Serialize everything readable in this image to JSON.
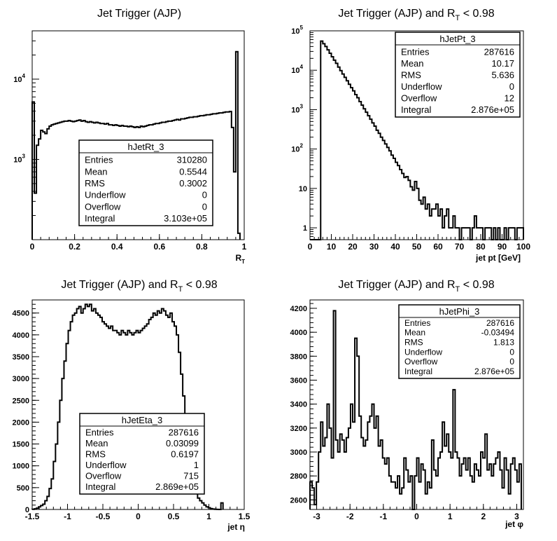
{
  "chart_data": [
    {
      "id": "rt",
      "type": "histogram",
      "title_main": "Jet Trigger (AJP)",
      "title_rt_suffix": "",
      "xlabel_main": "R",
      "xlabel_sub": "T",
      "x_ticks": [
        "0",
        "0.2",
        "0.4",
        "0.6",
        "0.8",
        "1"
      ],
      "y_ticks": [
        "10",
        "10"
      ],
      "y_tick_sups": [
        "3",
        "4"
      ],
      "xlim": [
        0,
        1.0
      ],
      "ylim": [
        100,
        40000
      ],
      "log_y": true,
      "bin_edges_start": 0.0,
      "bin_width": 0.01,
      "values": [
        5200,
        380,
        1500,
        1800,
        2300,
        2200,
        2100,
        2400,
        2600,
        2700,
        2750,
        2800,
        2850,
        2900,
        2950,
        3000,
        3000,
        3050,
        3000,
        2950,
        3000,
        3050,
        3100,
        3000,
        3050,
        2950,
        2900,
        2950,
        2900,
        2850,
        2900,
        2850,
        2800,
        2800,
        2750,
        2800,
        2700,
        2700,
        2650,
        2700,
        2650,
        2600,
        2650,
        2600,
        2600,
        2550,
        2600,
        2550,
        2500,
        2550,
        2500,
        2600,
        2550,
        2600,
        2650,
        2700,
        2700,
        2750,
        2800,
        2800,
        2850,
        2900,
        2900,
        2950,
        3000,
        3000,
        3050,
        3100,
        3150,
        3100,
        3200,
        3200,
        3250,
        3300,
        3350,
        3350,
        3400,
        3400,
        3450,
        3500,
        3500,
        3550,
        3600,
        3600,
        3650,
        3700,
        3700,
        3750,
        3800,
        3800,
        3850,
        3900,
        3900,
        3950,
        2500,
        700,
        22000,
        120
      ],
      "stats": {
        "name": "hJetRt_3",
        "rows": [
          {
            "label": "Entries",
            "value": "310280"
          },
          {
            "label": "Mean",
            "value": "0.5544"
          },
          {
            "label": "RMS",
            "value": "0.3002"
          },
          {
            "label": "Underflow",
            "value": "0"
          },
          {
            "label": "Overflow",
            "value": "0"
          },
          {
            "label": "Integral",
            "value": "3.103e+05"
          }
        ]
      }
    },
    {
      "id": "pt",
      "type": "histogram",
      "title_main": "Jet Trigger (AJP) and R",
      "title_sub": "T",
      "title_rt_suffix": " < 0.98",
      "xlabel_main": "jet pt [GeV]",
      "xlabel_sub": "",
      "x_ticks": [
        "0",
        "10",
        "20",
        "30",
        "40",
        "50",
        "60",
        "70",
        "80",
        "90",
        "100"
      ],
      "y_ticks": [
        "1",
        "10",
        "10",
        "10",
        "10",
        "10"
      ],
      "y_tick_sups": [
        "",
        "",
        "2",
        "3",
        "4",
        "5"
      ],
      "xlim": [
        0,
        100
      ],
      "ylim": [
        0.5,
        100000
      ],
      "log_y": true,
      "bin_edges_start": 0,
      "bin_width": 1,
      "values": [
        0,
        0,
        0,
        0,
        0,
        55000,
        47000,
        40000,
        33000,
        27000,
        22000,
        18000,
        15000,
        12000,
        9800,
        8000,
        6600,
        5400,
        4400,
        3600,
        3000,
        2400,
        2000,
        1600,
        1300,
        1050,
        860,
        700,
        570,
        460,
        380,
        300,
        250,
        200,
        165,
        135,
        110,
        90,
        70,
        58,
        46,
        38,
        30,
        24,
        19,
        20,
        16,
        11,
        9,
        15,
        10,
        5,
        4,
        6,
        3,
        4,
        2,
        3,
        3,
        4,
        2,
        3,
        1,
        2,
        3,
        1,
        1,
        2,
        1,
        1,
        0,
        1,
        1,
        1,
        1,
        0,
        1,
        2,
        1,
        1,
        1,
        0,
        1,
        1,
        1,
        0,
        1,
        0,
        1,
        0,
        0,
        1,
        0,
        1,
        1,
        1,
        0,
        1,
        1,
        1
      ],
      "stats": {
        "name": "hJetPt_3",
        "rows": [
          {
            "label": "Entries",
            "value": "287616"
          },
          {
            "label": "Mean",
            "value": "10.17"
          },
          {
            "label": "RMS",
            "value": "5.636"
          },
          {
            "label": "Underflow",
            "value": "0"
          },
          {
            "label": "Overflow",
            "value": "12"
          },
          {
            "label": "Integral",
            "value": "2.876e+05"
          }
        ]
      }
    },
    {
      "id": "eta",
      "type": "histogram",
      "title_main": "Jet Trigger (AJP) and R",
      "title_sub": "T",
      "title_rt_suffix": " < 0.98",
      "xlabel_main": "jet η",
      "xlabel_sub": "",
      "x_ticks": [
        "-1.5",
        "-1",
        "-0.5",
        "0",
        "0.5",
        "1",
        "1.5"
      ],
      "y_ticks": [
        "0",
        "500",
        "1000",
        "1500",
        "2000",
        "2500",
        "3000",
        "3500",
        "4000",
        "4500"
      ],
      "y_tick_sups": [
        "",
        "",
        "",
        "",
        "",
        "",
        "",
        "",
        "",
        ""
      ],
      "xlim": [
        -1.5,
        1.5
      ],
      "ylim": [
        0,
        4800
      ],
      "log_y": false,
      "bin_edges_start": -1.5,
      "bin_width": 0.03,
      "values": [
        5,
        15,
        30,
        60,
        90,
        120,
        200,
        300,
        480,
        700,
        1100,
        1500,
        2000,
        2500,
        3000,
        3400,
        3800,
        4100,
        4300,
        4450,
        4500,
        4600,
        4650,
        4500,
        4600,
        4700,
        4650,
        4700,
        4550,
        4600,
        4500,
        4450,
        4400,
        4300,
        4250,
        4200,
        4150,
        4200,
        4100,
        4100,
        4050,
        4000,
        4100,
        4050,
        4000,
        4100,
        4050,
        4000,
        4050,
        4100,
        4050,
        4100,
        4150,
        4200,
        4250,
        4350,
        4400,
        4500,
        4450,
        4550,
        4500,
        4600,
        4550,
        4450,
        4400,
        4500,
        4300,
        4200,
        4000,
        3600,
        3100,
        2600,
        2100,
        1600,
        1200,
        900,
        600,
        400,
        260,
        200,
        150,
        100,
        60,
        40,
        20,
        10,
        5,
        2,
        1,
        150
      ],
      "stats": {
        "name": "hJetEta_3",
        "rows": [
          {
            "label": "Entries",
            "value": "287616"
          },
          {
            "label": "Mean",
            "value": "0.03099"
          },
          {
            "label": "RMS",
            "value": "0.6197"
          },
          {
            "label": "Underflow",
            "value": "1"
          },
          {
            "label": "Overflow",
            "value": "715"
          },
          {
            "label": "Integral",
            "value": "2.869e+05"
          }
        ]
      }
    },
    {
      "id": "phi",
      "type": "histogram",
      "title_main": "Jet Trigger (AJP) and R",
      "title_sub": "T",
      "title_rt_suffix": " < 0.98",
      "xlabel_main": "jet φ",
      "xlabel_sub": "",
      "x_ticks": [
        "-3",
        "-2",
        "-1",
        "0",
        "1",
        "2",
        "3"
      ],
      "y_ticks": [
        "2600",
        "2800",
        "3000",
        "3200",
        "3400",
        "3600",
        "3800",
        "4000",
        "4200"
      ],
      "y_tick_sups": [
        "",
        "",
        "",
        "",
        "",
        "",
        "",
        "",
        ""
      ],
      "xlim": [
        -3.2,
        3.2
      ],
      "ylim": [
        2520,
        4270
      ],
      "log_y": false,
      "bin_edges_start": -3.2,
      "bin_width": 0.064,
      "values": [
        2750,
        2700,
        2560,
        2750,
        3000,
        3250,
        3050,
        3120,
        3400,
        3200,
        2950,
        4180,
        3100,
        3000,
        3150,
        3100,
        3000,
        3120,
        3200,
        3400,
        3250,
        3950,
        3800,
        3300,
        3120,
        3050,
        3100,
        3250,
        3300,
        3400,
        3200,
        3300,
        3050,
        3100,
        2950,
        2900,
        2950,
        2800,
        2750,
        2750,
        2700,
        2800,
        2650,
        2700,
        2950,
        2850,
        2750,
        2800,
        2520,
        2800,
        2950,
        2750,
        2900,
        2850,
        2650,
        2750,
        2700,
        3100,
        2850,
        2800,
        2950,
        3000,
        3250,
        3050,
        3150,
        3000,
        2950,
        3520,
        3000,
        2950,
        2800,
        2900,
        2950,
        2850,
        2950,
        2800,
        2750,
        2900,
        2850,
        2800,
        3000,
        2950,
        3150,
        2850,
        2900,
        2800,
        2900,
        2950,
        3000,
        2850,
        2700,
        2950,
        2850,
        2650,
        2900,
        2950,
        2850,
        2750,
        2900
      ],
      "stats": {
        "name": "hJetPhi_3",
        "rows": [
          {
            "label": "Entries",
            "value": "287616"
          },
          {
            "label": "Mean",
            "value": "-0.03494"
          },
          {
            "label": "RMS",
            "value": "1.813"
          },
          {
            "label": "Underflow",
            "value": "0"
          },
          {
            "label": "Overflow",
            "value": "0"
          },
          {
            "label": "Integral",
            "value": "2.876e+05"
          }
        ]
      }
    }
  ]
}
